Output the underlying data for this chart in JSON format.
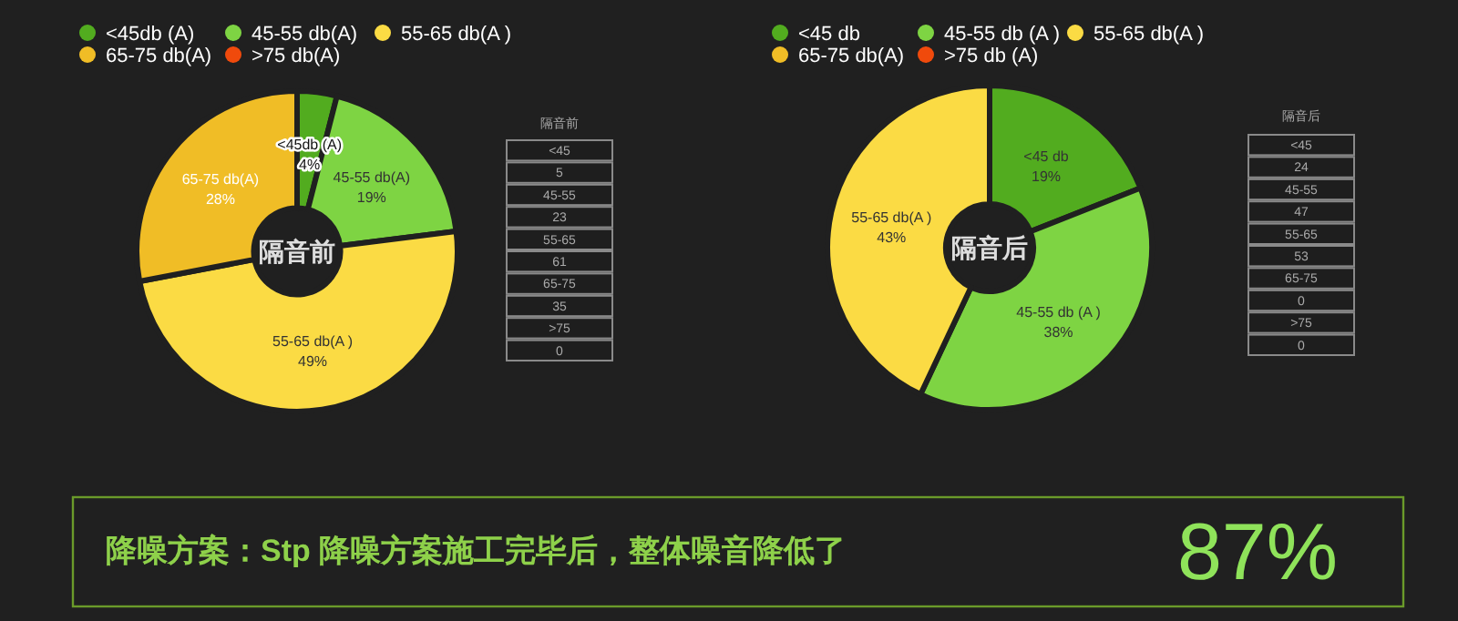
{
  "chart_data": [
    {
      "type": "donut",
      "title": "隔音前",
      "legend": "top left",
      "data_labels": true,
      "categories": [
        "<45db (A)",
        "45-55 db(A)",
        "55-65 db(A )",
        "65-75 db(A)",
        ">75 db(A)"
      ],
      "values": [
        4,
        19,
        49,
        28,
        0
      ],
      "value_labels": [
        "4%",
        "19%",
        "49%",
        "28%",
        null
      ],
      "colors": [
        "#52ac1f",
        "#7ed443",
        "#fbdb44",
        "#f0bd26",
        "#f04a0c"
      ]
    },
    {
      "type": "other",
      "title": "隔音前",
      "annotations": [
        "<45",
        "5",
        "45-55",
        "23",
        "55-65",
        "61",
        "65-75",
        "35",
        ">75",
        "0"
      ]
    },
    {
      "type": "donut",
      "title": "隔音后",
      "legend": "top left",
      "data_labels": true,
      "categories": [
        "<45 db",
        "45-55 db (A )",
        "55-65 db(A )",
        "65-75 db(A)",
        ">75 db (A)"
      ],
      "values": [
        19,
        38,
        43,
        0,
        0
      ],
      "value_labels": [
        "19%",
        "38%",
        "43%",
        null,
        null
      ],
      "colors": [
        "#52ac1f",
        "#7ed443",
        "#fbdb44",
        "#f0bd26",
        "#f04a0c"
      ]
    },
    {
      "type": "other",
      "title": "隔音后",
      "annotations": [
        "<45",
        "24",
        "45-55",
        "47",
        "55-65",
        "53",
        "65-75",
        "0",
        ">75",
        "0"
      ]
    },
    {
      "type": "other",
      "annotations": [
        "降噪方案：Stp 降噪方案施工完毕后，整体噪音降低了",
        "87%"
      ]
    }
  ]
}
